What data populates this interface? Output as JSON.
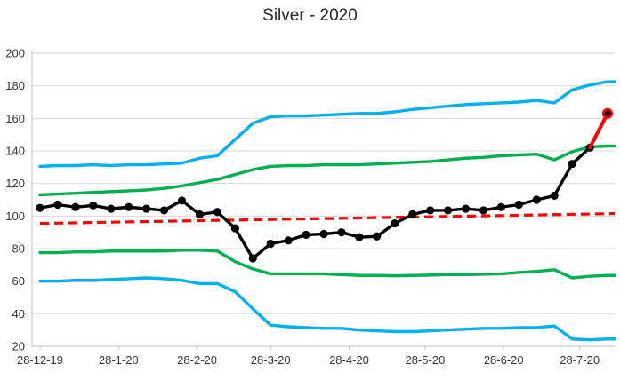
{
  "chart_data": {
    "type": "line",
    "title": "Silver - 2020",
    "grid": true,
    "legend": false,
    "y_min": 20,
    "y_max": 200,
    "y_step": 20,
    "y_tick_labels": [
      20,
      40,
      60,
      80,
      100,
      120,
      140,
      160,
      180,
      200
    ],
    "x_tick_labels": [
      "28-12-19",
      "28-1-20",
      "28-2-20",
      "28-3-20",
      "28-4-20",
      "28-5-20",
      "28-6-20",
      "28-7-20"
    ],
    "x_tick_day_offsets": [
      0,
      31,
      62,
      91,
      122,
      152,
      183,
      213
    ],
    "categories": [
      "28-12-19",
      "4-1-20",
      "11-1-20",
      "18-1-20",
      "25-1-20",
      "1-2-20",
      "8-2-20",
      "15-2-20",
      "22-2-20",
      "29-2-20",
      "7-3-20",
      "14-3-20",
      "21-3-20",
      "28-3-20",
      "4-4-20",
      "11-4-20",
      "18-4-20",
      "25-4-20",
      "2-5-20",
      "9-5-20",
      "16-5-20",
      "23-5-20",
      "30-5-20",
      "6-6-20",
      "13-6-20",
      "20-6-20",
      "27-6-20",
      "4-7-20",
      "11-7-20",
      "18-7-20",
      "25-7-20",
      "1-8-20",
      "8-8-20"
    ],
    "series": {
      "upper_band_blue": {
        "name": "upper-band-outer",
        "color_key": "blue",
        "values": [
          130.5,
          131,
          131,
          131.5,
          131,
          131.5,
          131.5,
          132,
          132.5,
          135.5,
          137,
          147,
          157,
          161,
          161.5,
          161.5,
          162,
          162.5,
          163,
          163,
          164,
          165.5,
          166.5,
          167.5,
          168.5,
          169,
          169.5,
          170,
          171,
          169.5,
          177.5,
          180.5,
          182.5
        ]
      },
      "upper_band_green": {
        "name": "upper-band-inner",
        "color_key": "green",
        "values": [
          113,
          113.5,
          114,
          114.5,
          115,
          115.5,
          116,
          117,
          118.5,
          120.5,
          122.5,
          125.5,
          128.5,
          130.5,
          131,
          131,
          131.5,
          131.5,
          131.5,
          132,
          132.5,
          133,
          133.5,
          134.5,
          135.5,
          136,
          137,
          137.5,
          138,
          134.5,
          139.5,
          142.5,
          143
        ]
      },
      "price_black": {
        "name": "silver-price",
        "color_key": "black",
        "markers": true,
        "values": [
          105,
          107,
          105.5,
          106.5,
          104.5,
          105.5,
          104.5,
          103.5,
          109.5,
          101,
          102.5,
          92.5,
          74,
          83,
          85,
          88.5,
          89,
          90,
          87,
          87.5,
          95.5,
          101,
          103.5,
          103.5,
          104.5,
          103.5,
          105.5,
          107,
          110,
          112.5,
          132,
          142
        ]
      },
      "final_red_segment": {
        "name": "latest-move",
        "color_key": "red",
        "from_value": 142,
        "final_value": 163,
        "final_category": "8-8-20"
      },
      "trend_red_dashed": {
        "name": "trend-line",
        "color_key": "red",
        "style": "dashed",
        "start_value": 95.5,
        "end_value": 101.5
      },
      "lower_band_green": {
        "name": "lower-band-inner",
        "color_key": "green",
        "values": [
          77.5,
          77.5,
          78,
          78,
          78.5,
          78.5,
          78.5,
          78.5,
          79,
          79,
          78.5,
          72,
          67.5,
          64.5,
          64.5,
          64.5,
          64.5,
          64,
          63.5,
          63.5,
          63.3,
          63.5,
          63.7,
          64,
          64,
          64.2,
          64.5,
          65.3,
          66,
          67,
          62,
          63,
          63.5
        ]
      },
      "lower_band_blue": {
        "name": "lower-band-outer",
        "color_key": "blue",
        "values": [
          60,
          60,
          60.5,
          60.5,
          61,
          61.5,
          62,
          61.5,
          60.5,
          58.5,
          58.5,
          53.5,
          43,
          33,
          32,
          31.5,
          31,
          31,
          30,
          29.5,
          29,
          29,
          29.5,
          30,
          30.5,
          31,
          31,
          31.5,
          31.5,
          32.5,
          24.5,
          24,
          24.5
        ]
      }
    },
    "colors": {
      "blue": "#00B0F0",
      "green": "#00B050",
      "red": "#FF0000",
      "black": "#000000",
      "gridline": "#D9D9D9",
      "axis": "#BFBFBF",
      "text": "#333333"
    }
  }
}
